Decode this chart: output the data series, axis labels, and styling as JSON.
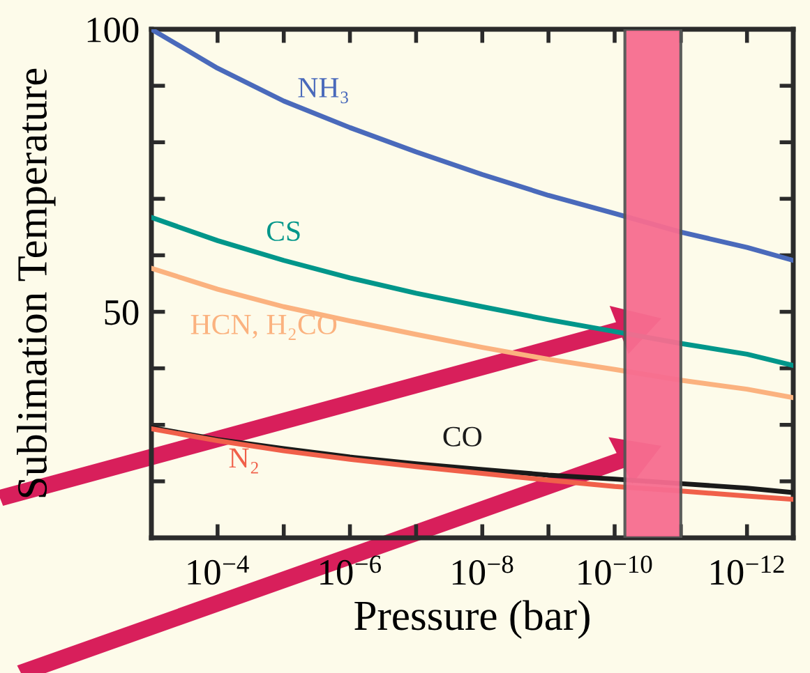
{
  "chart_data": {
    "type": "line",
    "xlabel": "Pressure (bar)",
    "ylabel": "Sublimation Temperature",
    "log": "x",
    "xlim": [
      0.001,
      2e-13
    ],
    "ylim": [
      10,
      100
    ],
    "xticks": [
      {
        "value": 0.0001,
        "label": "10$^{−4}$"
      },
      {
        "value": 1e-06,
        "label": "10$^{−6}$"
      },
      {
        "value": 1e-08,
        "label": "10$^{−8}$"
      },
      {
        "value": 1e-10,
        "label": "10$^{−10}$"
      },
      {
        "value": 1e-12,
        "label": "10$^{−12}$"
      }
    ],
    "yticks": [
      50,
      100
    ],
    "x": [
      0.001,
      0.0001,
      1e-05,
      1e-06,
      1e-07,
      1e-08,
      1e-09,
      1e-10,
      1e-11,
      1e-12,
      2e-13
    ],
    "series": [
      {
        "name": "NH₃",
        "color": "#4a6abb",
        "values": [
          100,
          93.1,
          87.3,
          82.6,
          78.3,
          74.3,
          70.6,
          67.4,
          64.1,
          61.4,
          59.1
        ]
      },
      {
        "name": "CS",
        "color": "#00968a",
        "values": [
          66.7,
          62.6,
          59.1,
          56.0,
          53.3,
          50.9,
          48.6,
          46.5,
          44.4,
          42.5,
          40.5
        ]
      },
      {
        "name": "HCN, H₂CO",
        "color": "#fbb27f",
        "values": [
          57.7,
          54.0,
          50.9,
          48.4,
          46.0,
          43.7,
          41.6,
          39.8,
          37.9,
          36.3,
          34.8
        ]
      },
      {
        "name": "CO",
        "color": "#1a1a1a",
        "values": [
          29.5,
          27.4,
          25.8,
          24.3,
          23.1,
          22.1,
          21.1,
          20.4,
          19.6,
          18.8,
          18.0
        ]
      },
      {
        "name": "N₂",
        "color": "#f0604a",
        "values": [
          29.3,
          27.2,
          25.4,
          23.9,
          22.6,
          21.4,
          20.2,
          19.1,
          18.3,
          17.4,
          16.8
        ]
      }
    ],
    "bands": [
      {
        "axis": "x",
        "from": 7e-11,
        "to": 1e-11,
        "color": "#f76d90"
      }
    ],
    "grid": false,
    "legend": false
  }
}
